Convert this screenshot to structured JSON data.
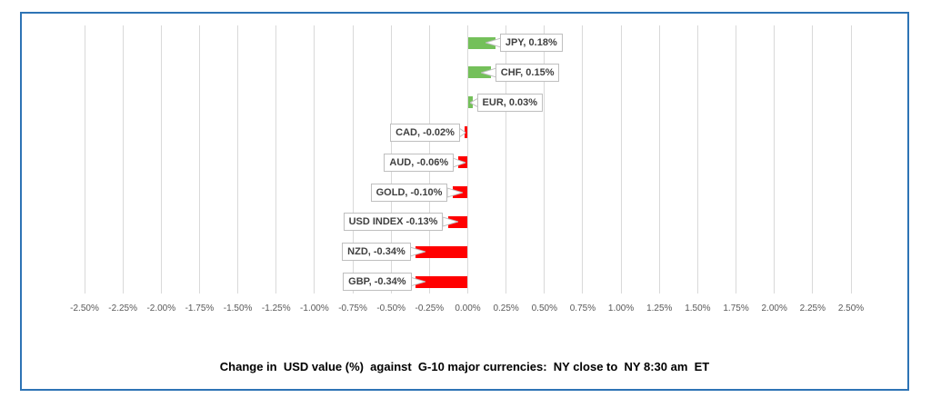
{
  "frame": {
    "border_color": "#2E74B5",
    "background": "#FFFFFF"
  },
  "chart_data": {
    "type": "bar",
    "orientation": "horizontal",
    "title": "Change in  USD value (%)  against  G-10 major currencies:  NY close to  NY 8:30 am  ET",
    "categories": [
      "JPY",
      "CHF",
      "EUR",
      "CAD",
      "AUD",
      "GOLD",
      "USD INDEX",
      "NZD",
      "GBP"
    ],
    "values": [
      0.18,
      0.15,
      0.03,
      -0.02,
      -0.06,
      -0.1,
      -0.13,
      -0.34,
      -0.34
    ],
    "data_labels": [
      "JPY, 0.18%",
      "CHF, 0.15%",
      "EUR, 0.03%",
      "CAD, -0.02%",
      "AUD, -0.06%",
      "GOLD, -0.10%",
      "USD INDEX -0.13%",
      "NZD, -0.34%",
      "GBP, -0.34%"
    ],
    "xlim": [
      -2.5,
      2.5
    ],
    "x_tick_values": [
      -2.5,
      -2.25,
      -2.0,
      -1.75,
      -1.5,
      -1.25,
      -1.0,
      -0.75,
      -0.5,
      -0.25,
      0.0,
      0.25,
      0.5,
      0.75,
      1.0,
      1.25,
      1.5,
      1.75,
      2.0,
      2.25,
      2.5
    ],
    "x_tick_labels": [
      "-2.50%",
      "-2.25%",
      "-2.00%",
      "-1.75%",
      "-1.50%",
      "-1.25%",
      "-1.00%",
      "-0.75%",
      "-0.50%",
      "-0.25%",
      "0.00%",
      "0.25%",
      "0.50%",
      "0.75%",
      "1.00%",
      "1.25%",
      "1.50%",
      "1.75%",
      "2.00%",
      "2.25%",
      "2.50%"
    ],
    "positive_color": "#74C05A",
    "negative_color": "#FF0000",
    "gridline_color": "#D9D9D9",
    "grid": true,
    "legend": false,
    "xlabel": "",
    "ylabel": ""
  }
}
